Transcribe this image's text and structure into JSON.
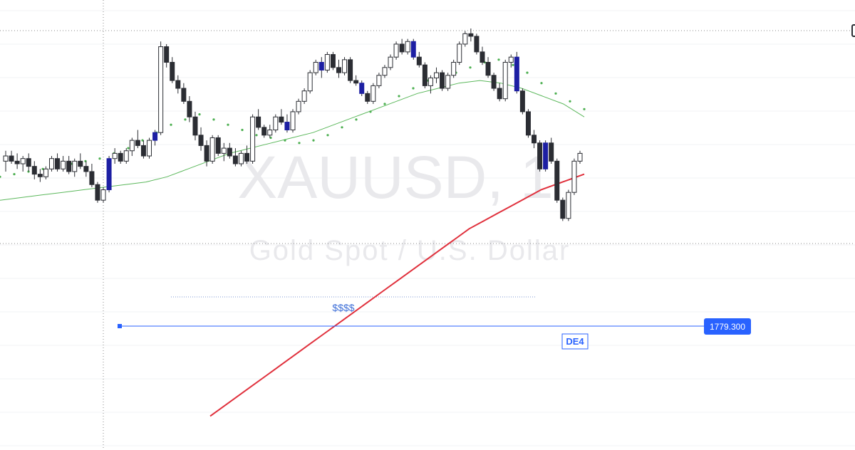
{
  "chart_data": {
    "type": "candlestick",
    "watermark": {
      "symbol": "XAUUSD, 1",
      "description": "Gold Spot / U.S. Dollar"
    },
    "ylim": [
      1770,
      1838
    ],
    "candles": [
      [
        1811.0,
        1813.0,
        1809.0,
        1812.0
      ],
      [
        1812.0,
        1813.0,
        1810.5,
        1811.0
      ],
      [
        1811.0,
        1812.5,
        1809.5,
        1810.5
      ],
      [
        1810.5,
        1812.0,
        1809.0,
        1811.5
      ],
      [
        1811.5,
        1812.5,
        1809.0,
        1810.0
      ],
      [
        1810.0,
        1811.0,
        1807.5,
        1808.5
      ],
      [
        1808.5,
        1809.5,
        1807.0,
        1808.0
      ],
      [
        1808.0,
        1810.0,
        1807.5,
        1809.5
      ],
      [
        1809.5,
        1812.0,
        1809.0,
        1811.5
      ],
      [
        1811.5,
        1812.5,
        1809.0,
        1809.5
      ],
      [
        1809.5,
        1812.0,
        1809.0,
        1811.0
      ],
      [
        1811.0,
        1812.0,
        1808.5,
        1809.0
      ],
      [
        1809.0,
        1811.5,
        1808.0,
        1811.0
      ],
      [
        1811.0,
        1812.5,
        1809.5,
        1810.0
      ],
      [
        1810.0,
        1811.0,
        1808.0,
        1809.0
      ],
      [
        1809.0,
        1810.5,
        1806.0,
        1806.5
      ],
      [
        1806.5,
        1807.0,
        1803.0,
        1803.5
      ],
      [
        1803.5,
        1806.0,
        1803.0,
        1805.5
      ],
      [
        1805.5,
        1812.0,
        1805.0,
        1811.5,
        1
      ],
      [
        1811.5,
        1813.5,
        1810.5,
        1812.5
      ],
      [
        1812.5,
        1813.0,
        1810.5,
        1811.0
      ],
      [
        1811.0,
        1813.5,
        1810.5,
        1813.0
      ],
      [
        1813.0,
        1815.5,
        1812.0,
        1815.0
      ],
      [
        1815.0,
        1817.0,
        1813.5,
        1814.0
      ],
      [
        1814.0,
        1815.0,
        1811.5,
        1812.0
      ],
      [
        1812.0,
        1815.5,
        1811.5,
        1815.0
      ],
      [
        1815.0,
        1817.0,
        1814.0,
        1816.5,
        1
      ],
      [
        1816.5,
        1834.0,
        1816.0,
        1833.0
      ],
      [
        1833.0,
        1833.5,
        1829.0,
        1830.0
      ],
      [
        1830.0,
        1831.0,
        1826.0,
        1826.5
      ],
      [
        1826.5,
        1827.5,
        1824.0,
        1825.0
      ],
      [
        1825.0,
        1826.0,
        1822.0,
        1822.5
      ],
      [
        1822.5,
        1823.5,
        1818.5,
        1819.5
      ],
      [
        1819.5,
        1820.5,
        1815.0,
        1816.0
      ],
      [
        1816.0,
        1817.5,
        1813.0,
        1814.0
      ],
      [
        1814.0,
        1815.0,
        1810.0,
        1811.0
      ],
      [
        1811.0,
        1816.0,
        1810.5,
        1815.5
      ],
      [
        1815.5,
        1816.0,
        1812.0,
        1812.5
      ],
      [
        1812.5,
        1814.5,
        1811.0,
        1813.5
      ],
      [
        1813.5,
        1814.5,
        1811.5,
        1812.0
      ],
      [
        1812.0,
        1813.5,
        1810.0,
        1810.5
      ],
      [
        1810.5,
        1813.0,
        1810.0,
        1812.5
      ],
      [
        1812.5,
        1814.0,
        1810.5,
        1811.0
      ],
      [
        1811.0,
        1820.0,
        1810.5,
        1819.5
      ],
      [
        1819.5,
        1821.0,
        1817.0,
        1817.5
      ],
      [
        1817.5,
        1818.0,
        1815.5,
        1816.0
      ],
      [
        1816.0,
        1818.0,
        1815.5,
        1817.0
      ],
      [
        1817.0,
        1820.0,
        1816.5,
        1819.5
      ],
      [
        1819.5,
        1821.0,
        1818.0,
        1818.5
      ],
      [
        1818.5,
        1820.0,
        1816.5,
        1817.0,
        1
      ],
      [
        1817.0,
        1821.0,
        1816.5,
        1820.5
      ],
      [
        1820.5,
        1823.0,
        1820.0,
        1822.5
      ],
      [
        1822.5,
        1825.0,
        1822.0,
        1824.5
      ],
      [
        1824.5,
        1828.5,
        1824.0,
        1828.0
      ],
      [
        1828.0,
        1830.5,
        1827.5,
        1830.0
      ],
      [
        1830.0,
        1831.0,
        1827.0,
        1828.5,
        1
      ],
      [
        1828.5,
        1832.0,
        1828.0,
        1831.5
      ],
      [
        1831.5,
        1832.0,
        1828.5,
        1829.0
      ],
      [
        1829.0,
        1830.5,
        1827.0,
        1828.0
      ],
      [
        1828.0,
        1831.0,
        1827.5,
        1830.5
      ],
      [
        1830.5,
        1831.0,
        1826.0,
        1826.5
      ],
      [
        1826.5,
        1827.5,
        1825.5,
        1826.0
      ],
      [
        1826.0,
        1826.5,
        1823.5,
        1824.0,
        1
      ],
      [
        1824.0,
        1824.5,
        1822.0,
        1822.5
      ],
      [
        1822.5,
        1826.0,
        1822.0,
        1825.5
      ],
      [
        1825.5,
        1828.0,
        1825.0,
        1827.5
      ],
      [
        1827.5,
        1829.5,
        1827.0,
        1829.0
      ],
      [
        1829.0,
        1831.5,
        1828.5,
        1831.0
      ],
      [
        1831.0,
        1834.0,
        1830.5,
        1833.5
      ],
      [
        1833.5,
        1834.5,
        1831.5,
        1832.0
      ],
      [
        1832.0,
        1834.5,
        1831.5,
        1834.0
      ],
      [
        1834.0,
        1834.5,
        1830.5,
        1831.0,
        1
      ],
      [
        1831.0,
        1832.0,
        1829.0,
        1829.5
      ],
      [
        1829.5,
        1830.0,
        1825.0,
        1825.5
      ],
      [
        1825.5,
        1827.5,
        1824.0,
        1827.0
      ],
      [
        1827.0,
        1829.0,
        1826.0,
        1828.0
      ],
      [
        1828.0,
        1828.5,
        1824.5,
        1825.0
      ],
      [
        1825.0,
        1828.0,
        1824.5,
        1827.5
      ],
      [
        1827.5,
        1830.5,
        1827.0,
        1830.0
      ],
      [
        1830.0,
        1834.0,
        1829.5,
        1833.5
      ],
      [
        1833.5,
        1836.0,
        1833.0,
        1835.5
      ],
      [
        1835.5,
        1836.5,
        1834.0,
        1835.0
      ],
      [
        1835.0,
        1835.5,
        1831.5,
        1832.0
      ],
      [
        1832.0,
        1833.0,
        1829.5,
        1830.0
      ],
      [
        1830.0,
        1831.0,
        1827.0,
        1827.5
      ],
      [
        1827.5,
        1828.0,
        1824.5,
        1825.0
      ],
      [
        1825.0,
        1826.0,
        1822.5,
        1823.0
      ],
      [
        1823.0,
        1830.5,
        1822.5,
        1830.0
      ],
      [
        1830.0,
        1831.5,
        1829.0,
        1831.0
      ],
      [
        1831.0,
        1832.0,
        1824.0,
        1824.5,
        1
      ],
      [
        1824.5,
        1825.0,
        1820.0,
        1820.5
      ],
      [
        1820.5,
        1821.0,
        1815.5,
        1816.0
      ],
      [
        1816.0,
        1817.0,
        1813.5,
        1814.5
      ],
      [
        1814.5,
        1815.0,
        1809.0,
        1809.5
      ],
      [
        1809.5,
        1815.0,
        1809.0,
        1814.5,
        1
      ],
      [
        1814.5,
        1815.5,
        1810.5,
        1811.0
      ],
      [
        1811.0,
        1811.5,
        1803.0,
        1803.5
      ],
      [
        1803.5,
        1804.0,
        1799.5,
        1800.0
      ],
      [
        1800.0,
        1805.5,
        1799.5,
        1805.0
      ],
      [
        1805.0,
        1811.5,
        1804.5,
        1811.0
      ],
      [
        1811.0,
        1813.0,
        1810.5,
        1812.5
      ]
    ],
    "moving_average_short": [
      1803.5,
      1804.0,
      1804.5,
      1805.0,
      1805.5,
      1806.0,
      1806.5,
      1807.0,
      1808.0,
      1809.5,
      1811.0,
      1812.5,
      1813.5,
      1814.5,
      1815.5,
      1816.5,
      1818.0,
      1819.5,
      1821.0,
      1822.5,
      1824.0,
      1825.0,
      1826.0,
      1826.5,
      1826.0,
      1825.0,
      1823.5,
      1822.0,
      1819.5
    ],
    "moving_average_long": [
      1762.0,
      1764.0,
      1766.0,
      1768.0,
      1770.0,
      1772.0,
      1774.0,
      1776.0,
      1778.0,
      1780.0,
      1782.0,
      1784.0,
      1786.0,
      1788.0,
      1790.0,
      1792.0,
      1794.0,
      1796.0,
      1798.0,
      1799.5,
      1801.0,
      1802.5,
      1804.0,
      1805.5,
      1806.5,
      1807.5,
      1808.5
    ],
    "parabolic_sar": [
      1808.0,
      1808.5,
      1809.0,
      1809.5,
      1810.0,
      1810.5,
      1811.0,
      1811.5,
      1812.5,
      1813.5,
      1815.0,
      1816.5,
      1818.0,
      1819.0,
      1820.0,
      1819.0,
      1818.0,
      1817.0,
      1816.0,
      1815.5,
      1815.0,
      1814.5,
      1815.0,
      1816.0,
      1817.5,
      1819.0,
      1820.5,
      1822.0,
      1823.5,
      1825.0,
      1826.5,
      1827.0,
      1828.0,
      1829.0,
      1830.0,
      1830.5,
      1829.5,
      1828.0,
      1826.0,
      1824.0,
      1822.5,
      1821.0
    ],
    "support_level": 1779.3
  },
  "annotations": {
    "price_label": "1779.300",
    "dollar_text": "$$$$",
    "level_tag": "DE4"
  },
  "colors": {
    "bull_candle": "#ffffff",
    "bear_candle": "#2b2d33",
    "highlight_candle": "#1d1fa3",
    "wick": "#2b2d33",
    "ma_short": "#5cb85c",
    "ma_long": "#e0303c",
    "sar": "#4caf50",
    "level_line": "#2962ff",
    "price_label_bg": "#2962ff",
    "crosshair": "#8a8a8a",
    "dotted_level": "#7e97d3"
  }
}
